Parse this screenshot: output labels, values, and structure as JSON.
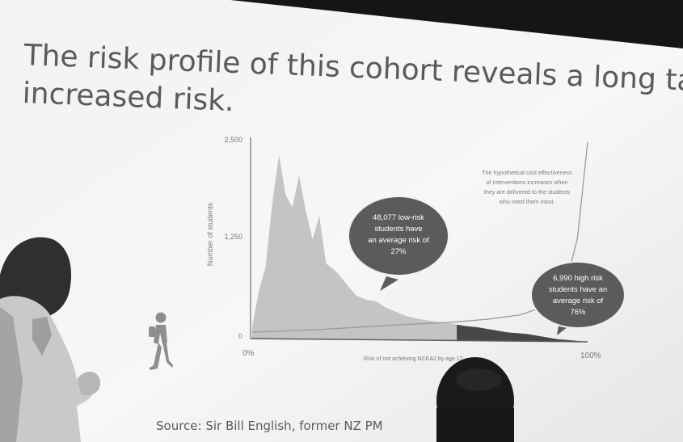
{
  "slide": {
    "title_line1": "The risk profile of this cohort reveals a long tail of",
    "title_line2": "increased risk.",
    "source": "Source: Sir Bill English, former NZ PM"
  },
  "chart_data": {
    "type": "area",
    "xlabel": "Risk of not achieving NCEA2 by age 17",
    "ylabel": "Number of students",
    "x_ticks": [
      "0%",
      "100%"
    ],
    "y_ticks": [
      "2,500",
      "1,250",
      "0"
    ],
    "ylim": [
      0,
      2500
    ],
    "xlim": [
      0,
      100
    ],
    "series": [
      {
        "name": "low-risk",
        "x": [
          0,
          2,
          4,
          6,
          8,
          10,
          12,
          14,
          16,
          18,
          20,
          22,
          25,
          28,
          31,
          34,
          37,
          40,
          43,
          46,
          49,
          52,
          55,
          58,
          61
        ],
        "values": [
          150,
          600,
          900,
          1700,
          2300,
          1800,
          1650,
          2050,
          1600,
          1250,
          1550,
          950,
          850,
          700,
          550,
          500,
          480,
          400,
          350,
          300,
          270,
          250,
          230,
          220,
          200
        ]
      },
      {
        "name": "high-risk",
        "x": [
          61,
          64,
          67,
          70,
          73,
          76,
          79,
          82,
          85,
          88,
          91,
          94,
          97,
          100
        ],
        "values": [
          200,
          180,
          170,
          150,
          130,
          110,
          100,
          90,
          70,
          50,
          30,
          20,
          10,
          0
        ]
      },
      {
        "name": "cost-effectiveness",
        "x": [
          0,
          20,
          40,
          60,
          70,
          80,
          86,
          90,
          94,
          97,
          100
        ],
        "values": [
          80,
          120,
          180,
          230,
          270,
          330,
          420,
          560,
          800,
          1300,
          2500
        ]
      }
    ],
    "annotations": {
      "low_risk": [
        "48,077 low-risk",
        "students have",
        "an average risk of",
        "27%"
      ],
      "high_risk": [
        "6,990 high risk",
        "students have an",
        "average risk of",
        "76%"
      ],
      "curve_note": [
        "The hypothetical cost effectiveness",
        "of interventions increases when",
        "they are delivered to the students",
        "who need them most."
      ]
    }
  }
}
